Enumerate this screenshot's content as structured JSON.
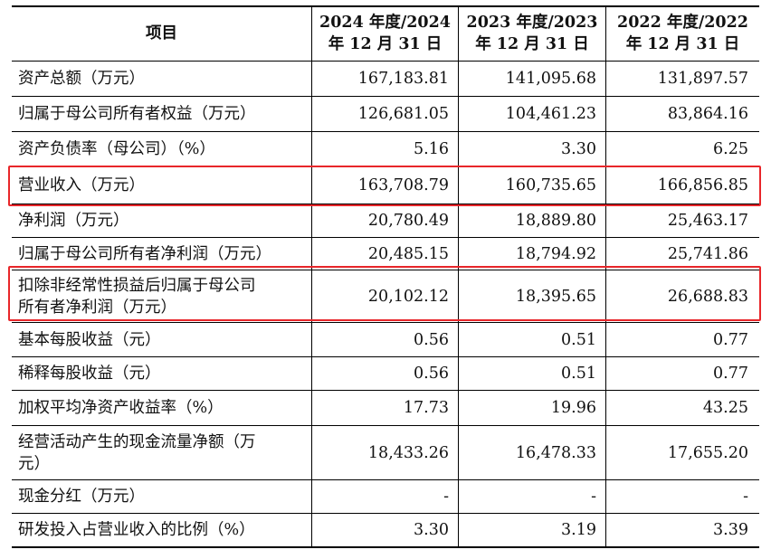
{
  "header": {
    "item": "项目",
    "cols": [
      {
        "line1": "2024 年度/2024",
        "line2": "年 12 月 31 日"
      },
      {
        "line1": "2023 年度/2023",
        "line2": "年 12 月 31 日"
      },
      {
        "line1": "2022 年度/2022",
        "line2": "年 12 月 31 日"
      }
    ]
  },
  "rows": [
    {
      "label1": "资产总额（万元）",
      "label2": "",
      "v1": "167,183.81",
      "v2": "141,095.68",
      "v3": "131,897.57"
    },
    {
      "label1": "归属于母公司所有者权益（万元）",
      "label2": "",
      "v1": "126,681.05",
      "v2": "104,461.23",
      "v3": "83,864.16"
    },
    {
      "label1": "资产负债率（母公司）（%）",
      "label2": "",
      "v1": "5.16",
      "v2": "3.30",
      "v3": "6.25"
    },
    {
      "label1": "营业收入（万元）",
      "label2": "",
      "v1": "163,708.79",
      "v2": "160,735.65",
      "v3": "166,856.85"
    },
    {
      "label1": "净利润（万元）",
      "label2": "",
      "v1": "20,780.49",
      "v2": "18,889.80",
      "v3": "25,463.17"
    },
    {
      "label1": "归属于母公司所有者净利润（万元）",
      "label2": "",
      "v1": "20,485.15",
      "v2": "18,794.92",
      "v3": "25,741.86"
    },
    {
      "label1": "扣除非经常性损益后归属于母公司",
      "label2": "所有者净利润（万元）",
      "v1": "20,102.12",
      "v2": "18,395.65",
      "v3": "26,688.83"
    },
    {
      "label1": "基本每股收益（元）",
      "label2": "",
      "v1": "0.56",
      "v2": "0.51",
      "v3": "0.77"
    },
    {
      "label1": "稀释每股收益（元）",
      "label2": "",
      "v1": "0.56",
      "v2": "0.51",
      "v3": "0.77"
    },
    {
      "label1": "加权平均净资产收益率（%）",
      "label2": "",
      "v1": "17.73",
      "v2": "19.96",
      "v3": "43.25"
    },
    {
      "label1": "经营活动产生的现金流量净额（万",
      "label2": "元）",
      "v1": "18,433.26",
      "v2": "16,478.33",
      "v3": "17,655.20"
    },
    {
      "label1": "现金分红（万元）",
      "label2": "",
      "v1": "-",
      "v2": "-",
      "v3": "-"
    },
    {
      "label1": "研发投入占营业收入的比例（%）",
      "label2": "",
      "v1": "3.30",
      "v2": "3.19",
      "v3": "3.39"
    }
  ],
  "highlight_color": "#e8262a"
}
